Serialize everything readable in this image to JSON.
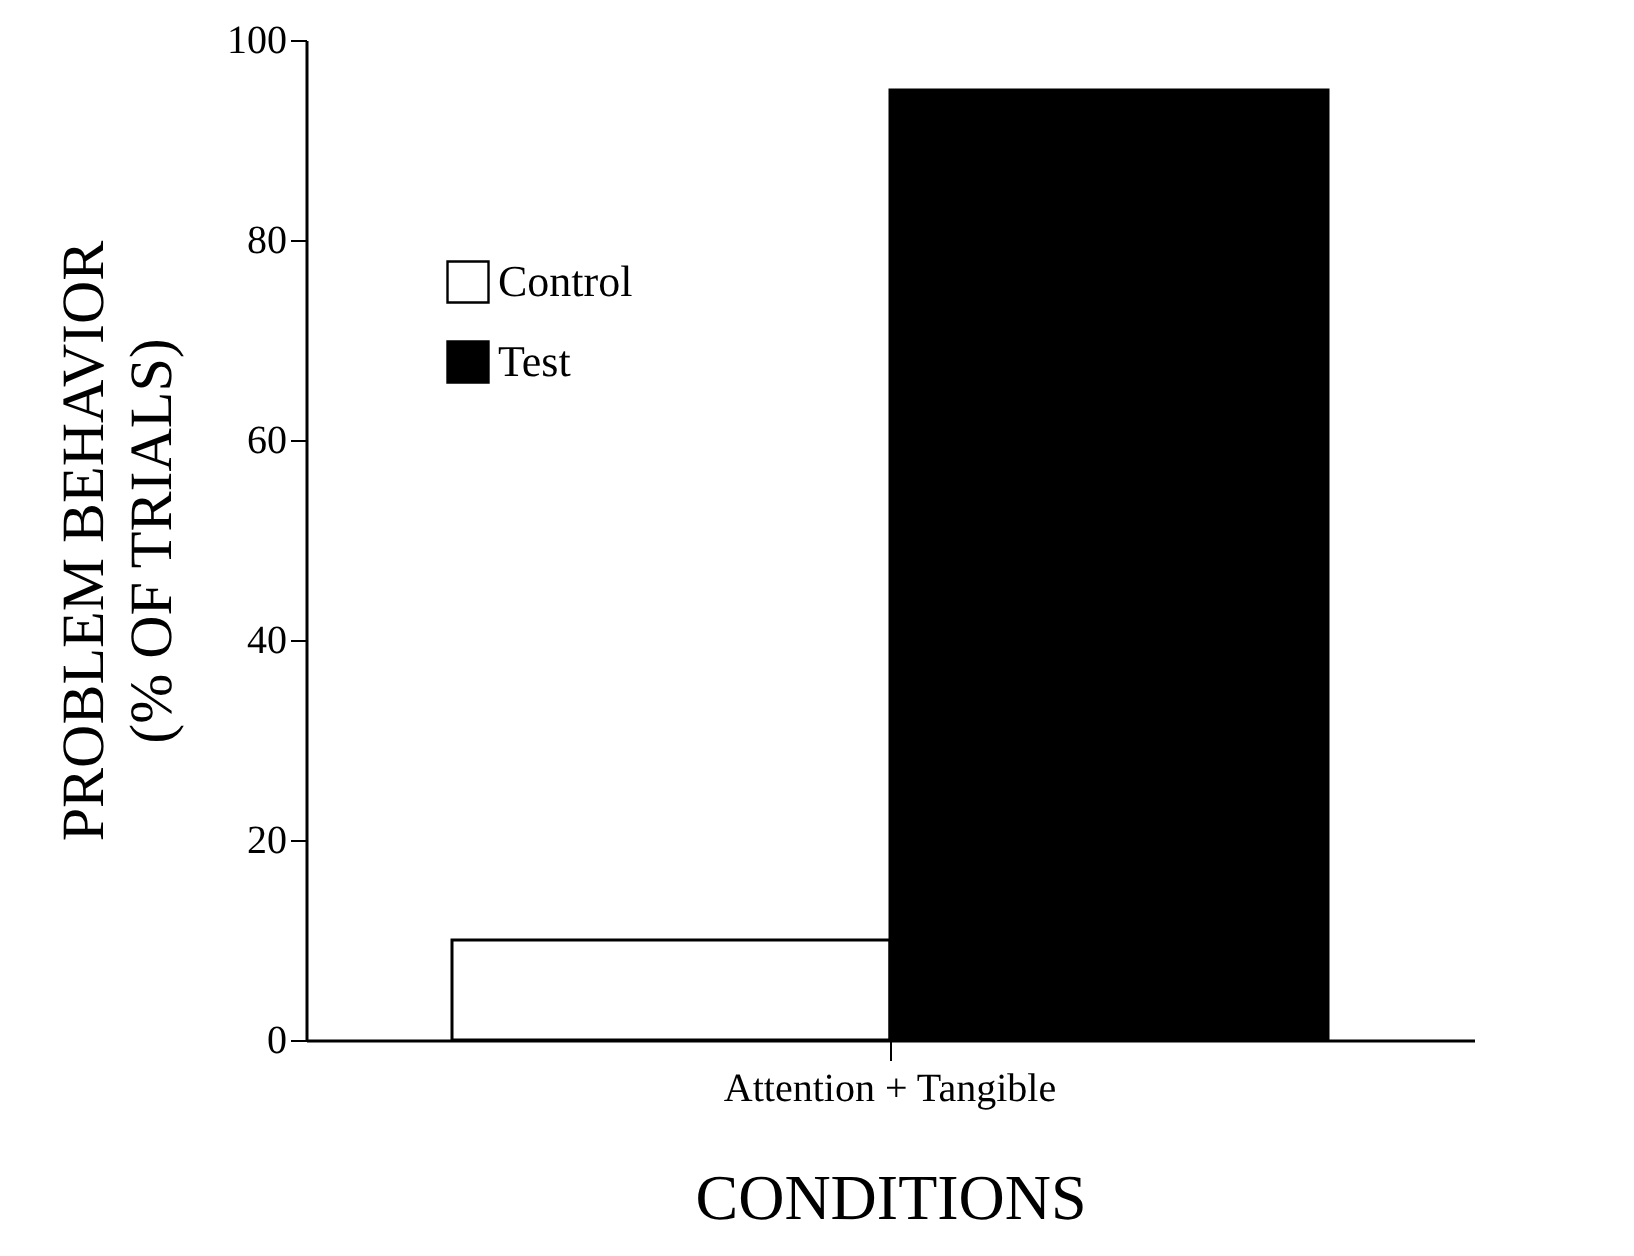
{
  "chart_data": {
    "type": "bar",
    "xlabel": "CONDITIONS",
    "ylabel": "PROBLEM BEHAVIOR\n(% OF TRIALS)",
    "categories": [
      "Attention + Tangible"
    ],
    "series": [
      {
        "name": "Control",
        "color": "#ffffff",
        "values": [
          10
        ]
      },
      {
        "name": "Test",
        "color": "#000000",
        "values": [
          95
        ]
      }
    ],
    "ylim": [
      0,
      100
    ],
    "yticks": [
      0,
      20,
      40,
      60,
      80,
      100
    ],
    "legend": "top left"
  }
}
